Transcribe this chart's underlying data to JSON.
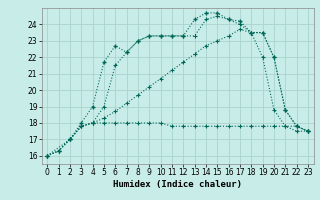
{
  "title": "",
  "xlabel": "Humidex (Indice chaleur)",
  "bg_color": "#c8ece8",
  "grid_color": "#aad4ce",
  "grid_color_minor": "#bbddd8",
  "line_color": "#006858",
  "xlim": [
    -0.5,
    23.5
  ],
  "ylim": [
    15.5,
    25.0
  ],
  "yticks": [
    16,
    17,
    18,
    19,
    20,
    21,
    22,
    23,
    24
  ],
  "xticks": [
    0,
    1,
    2,
    3,
    4,
    5,
    6,
    7,
    8,
    9,
    10,
    11,
    12,
    13,
    14,
    15,
    16,
    17,
    18,
    19,
    20,
    21,
    22,
    23
  ],
  "line1_x": [
    0,
    1,
    2,
    3,
    4,
    5,
    6,
    7,
    8,
    9,
    10,
    11,
    12,
    13,
    14,
    15,
    16,
    17,
    18,
    19,
    20,
    21,
    22,
    23
  ],
  "line1_y": [
    16.0,
    16.3,
    17.0,
    17.8,
    18.0,
    18.0,
    18.0,
    18.0,
    18.0,
    18.0,
    18.0,
    17.8,
    17.8,
    17.8,
    17.8,
    17.8,
    17.8,
    17.8,
    17.8,
    17.8,
    17.8,
    17.8,
    17.8,
    17.5
  ],
  "line2_x": [
    0,
    1,
    2,
    3,
    4,
    5,
    6,
    7,
    8,
    9,
    10,
    11,
    12,
    13,
    14,
    15,
    16,
    17,
    18,
    19,
    20,
    21,
    22,
    23
  ],
  "line2_y": [
    16.0,
    16.3,
    17.0,
    18.0,
    19.0,
    21.7,
    22.7,
    22.3,
    23.0,
    23.3,
    23.3,
    23.3,
    23.3,
    24.3,
    24.7,
    24.7,
    24.3,
    24.2,
    23.5,
    23.5,
    22.0,
    18.8,
    17.8,
    17.5
  ],
  "line3_x": [
    0,
    2,
    3,
    4,
    5,
    6,
    7,
    8,
    9,
    10,
    11,
    12,
    13,
    14,
    15,
    16,
    17,
    18,
    19,
    20,
    21,
    22,
    23
  ],
  "line3_y": [
    16.0,
    17.0,
    17.8,
    18.0,
    19.0,
    21.5,
    22.3,
    23.0,
    23.3,
    23.3,
    23.3,
    23.3,
    23.3,
    24.3,
    24.5,
    24.3,
    24.0,
    23.5,
    23.5,
    22.0,
    18.8,
    17.8,
    17.5
  ],
  "line4_x": [
    0,
    1,
    2,
    3,
    4,
    5,
    6,
    7,
    8,
    9,
    10,
    11,
    12,
    13,
    14,
    15,
    16,
    17,
    18,
    19,
    20,
    21,
    22,
    23
  ],
  "line4_y": [
    16.0,
    16.3,
    17.0,
    17.8,
    18.0,
    18.3,
    18.7,
    19.2,
    19.7,
    20.2,
    20.7,
    21.2,
    21.7,
    22.2,
    22.7,
    23.0,
    23.3,
    23.7,
    23.5,
    22.0,
    18.8,
    17.8,
    17.5,
    17.5
  ]
}
